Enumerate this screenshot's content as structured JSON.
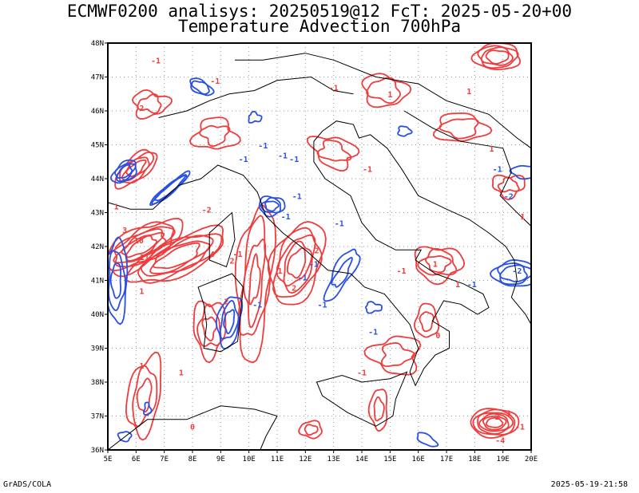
{
  "header": {
    "title_line1": "ECMWF0200 analisys: 20250519@12 FcT: 2025-05-20+00",
    "title_line2": "Temperature Advection 700hPa"
  },
  "footer": {
    "left": "GrADS/COLA",
    "right": "2025-05-19-21:58"
  },
  "axes": {
    "lon_labels": [
      "5E",
      "6E",
      "7E",
      "8E",
      "9E",
      "10E",
      "11E",
      "12E",
      "13E",
      "14E",
      "15E",
      "16E",
      "17E",
      "18E",
      "19E",
      "20E"
    ],
    "lat_labels": [
      "36N",
      "37N",
      "38N",
      "39N",
      "40N",
      "41N",
      "42N",
      "43N",
      "44N",
      "45N",
      "46N",
      "47N",
      "48N"
    ],
    "lon_range": [
      5,
      20
    ],
    "lat_range": [
      36,
      48
    ],
    "grid": true
  },
  "colors": {
    "warm_advection": "#f03c3c",
    "cold_advection": "#2850e6",
    "coastline": "#000000",
    "grid": "#999999"
  },
  "contour_labels": {
    "red": [
      "-1",
      "-1",
      "-1",
      "2",
      "1",
      "1",
      "1",
      "-1",
      "1",
      "-2",
      "3",
      "10",
      "11",
      "4",
      "2",
      "-1",
      "1",
      "2",
      "1",
      "2",
      "-1",
      "1",
      "2",
      "1",
      "1",
      "-1",
      "1",
      "1",
      "0",
      "2",
      "3",
      "-1",
      "0",
      "-4"
    ],
    "blue": [
      "-1",
      "-1",
      "-1",
      "-1",
      "-1",
      "-1",
      "-1",
      "-1",
      "-1",
      "-1",
      "-1",
      "-2",
      "-1",
      "-2",
      "-1",
      "-1"
    ]
  }
}
